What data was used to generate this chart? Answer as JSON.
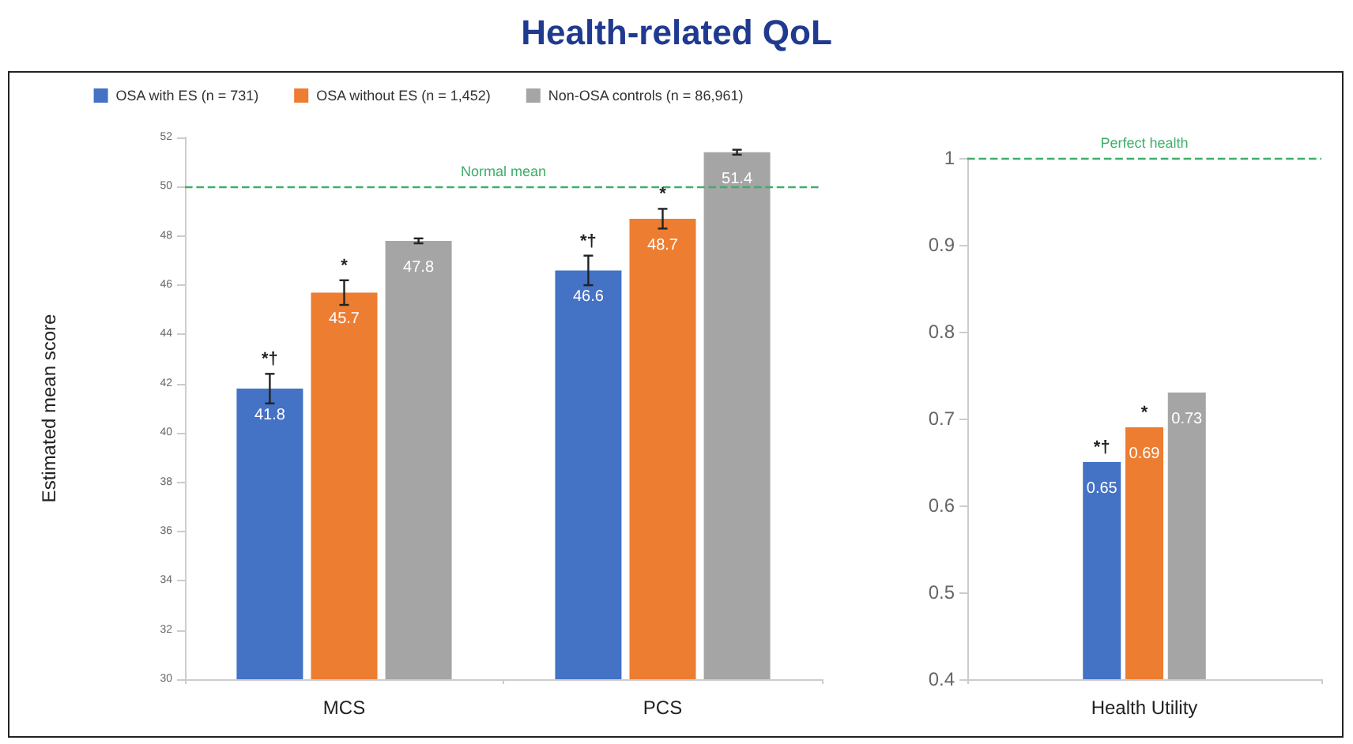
{
  "chart_data": [
    {
      "type": "bar",
      "title": "Health-related QoL",
      "ylabel": "Estimated mean score",
      "categories": [
        "MCS",
        "PCS"
      ],
      "series": [
        {
          "name": "OSA with ES (n = 731)",
          "color": "#4472c4",
          "values": [
            41.8,
            46.6
          ],
          "errors": [
            0.6,
            0.6
          ]
        },
        {
          "name": "OSA without ES (n = 1,452)",
          "color": "#ed7d31",
          "values": [
            45.7,
            48.7
          ],
          "errors": [
            0.5,
            0.4
          ]
        },
        {
          "name": "Non-OSA controls (n = 86,961)",
          "color": "#a5a5a5",
          "values": [
            47.8,
            51.4
          ],
          "errors": [
            0.1,
            0.1
          ]
        }
      ],
      "ylim": [
        30,
        52
      ],
      "yticks": [
        30,
        32,
        34,
        36,
        38,
        40,
        42,
        44,
        46,
        48,
        50,
        52
      ],
      "grid": false,
      "legend": "top",
      "data_labels": true,
      "ref_lines": [
        {
          "axis": "y",
          "value": 50,
          "label": "Normal mean",
          "color": "#3fae6a",
          "line_style": "dashed"
        }
      ],
      "annotations": [
        "*†",
        {
          "text": "*",
          "x": "MCS",
          "y": 45.7
        },
        "*†",
        {
          "text": "*",
          "x": "PCS",
          "y": 48.7
        }
      ]
    },
    {
      "type": "bar",
      "categories": [
        "Health Utility"
      ],
      "series": [
        {
          "color": "#4472c4",
          "values": [
            0.65
          ]
        },
        {
          "color": "#ed7d31",
          "values": [
            0.69
          ]
        },
        {
          "color": "#a5a5a5",
          "values": [
            0.73
          ]
        }
      ],
      "ylim": [
        0.4,
        1
      ],
      "yticks": [
        0.4,
        0.5,
        0.6,
        0.7,
        0.8,
        0.9,
        1
      ],
      "grid": false,
      "data_labels": true,
      "ref_lines": [
        {
          "axis": "y",
          "value": 1,
          "label": "Perfect health",
          "color": "#3fae6a",
          "line_style": "dashed"
        }
      ],
      "annotations": [
        "*†",
        {
          "text": "*",
          "x": "Health Utility",
          "y": 0.69
        }
      ]
    }
  ]
}
